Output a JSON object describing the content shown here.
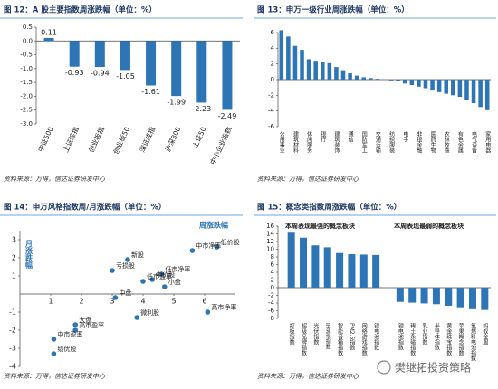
{
  "watermark": "樊继拓投资策略",
  "chart_data": [
    {
      "type": "bar",
      "title": "图 12：A 股主要指数周涨跌幅（单位：%）",
      "source": "资料来源：万得，信达证券研发中心",
      "categories": [
        "中证500",
        "上证综指",
        "创业板指",
        "创业板50",
        "深证成指",
        "沪深300",
        "上证50",
        "中小企业指数"
      ],
      "values": [
        0.11,
        -0.93,
        -0.94,
        -1.05,
        -1.61,
        -1.99,
        -2.23,
        -2.49
      ],
      "color": "#2e75b6",
      "show_values": true,
      "ylim": [
        -3,
        0.5
      ],
      "yticks": [
        0.5,
        {
          "value": 0,
          "label": "0.0"
        },
        -0.5,
        {
          "value": -1,
          "label": "-1.0"
        },
        -1.5,
        {
          "value": -2,
          "label": "-2.0"
        },
        -2.5,
        {
          "value": -3,
          "label": "-3.0"
        }
      ]
    },
    {
      "type": "bar",
      "title": "图 13：申万一级行业周涨跌幅（单位：%）",
      "source": "资料来源：万得，信达证券研发中心",
      "categories": [
        "公用事业",
        null,
        "建筑材料",
        null,
        "休闲服务",
        null,
        "银行",
        null,
        "建筑装饰",
        null,
        "通信",
        null,
        "国防军工",
        null,
        "交通运输",
        null,
        "纺织服装",
        null,
        "电子",
        null,
        "非银金融",
        null,
        "医药生物",
        null,
        "农林牧渔",
        null,
        "有色金属",
        null,
        "电气设备",
        null,
        "家用电器"
      ],
      "values": [
        6.3,
        5.5,
        4.3,
        3.8,
        2.6,
        2.4,
        2.2,
        2.1,
        1.6,
        1.2,
        0.8,
        0.5,
        0.3,
        0.2,
        0.1,
        0.0,
        -0.1,
        -0.2,
        -0.5,
        -0.7,
        -0.9,
        -1.1,
        -1.4,
        -1.6,
        -1.8,
        -2.0,
        -2.2,
        -2.6,
        -3.0,
        -3.5,
        -3.9
      ],
      "color": "#2e75b6",
      "ylim": [
        -6,
        6
      ],
      "yticks": [
        6,
        4,
        2,
        0,
        -2,
        -4,
        -6
      ]
    },
    {
      "type": "scatter",
      "title": "图 14：申万风格指数周/月涨跌幅（单位：%）",
      "source": "资料来源：万得，信达证券研发中心",
      "xlabel": "周涨跌幅",
      "ylabel": "月涨跌幅",
      "labels": [
        "低价股",
        "中市净率",
        "亏损股",
        "新股",
        "低市净率",
        "中价股",
        "低市盈率",
        "小盘",
        "中盘",
        "高市净率",
        "微利股",
        "大盘",
        "高市盈率",
        "中市盈率",
        "绩优股"
      ],
      "x": [
        6.4,
        5.6,
        3.0,
        3.5,
        4.6,
        4.3,
        4.0,
        4.7,
        3.1,
        6.1,
        3.8,
        1.8,
        1.8,
        1.1,
        1.1
      ],
      "y": [
        2.6,
        2.4,
        1.3,
        1.9,
        1.1,
        0.8,
        0.7,
        0.4,
        -0.2,
        -1.0,
        -1.3,
        -1.7,
        -2.0,
        -2.5,
        -3.3
      ],
      "color": "#2e75b6",
      "xlim": [
        0,
        7
      ],
      "ylim": [
        -4,
        3.5
      ],
      "xticks": [
        1,
        2,
        3,
        4,
        5,
        6
      ],
      "yticks": [
        3,
        2,
        1,
        -1,
        -2,
        -3,
        -4
      ]
    },
    {
      "type": "bar",
      "title": "图 15：概念类指数周涨跌幅（单位：%）",
      "source": "资料来源：万得，信达证券研发中心",
      "groups": [
        {
          "name": "本周表现最强的概念板块",
          "categories": [
            "打板指数",
            "超级品牌指数",
            "光伏指数",
            "IP变现指数",
            "智能音箱指数",
            "PM2.5指数",
            "网络游戏指数",
            "锂电池指数"
          ],
          "values": [
            14.3,
            13.0,
            11.0,
            10.5,
            9.0,
            8.7,
            8.6,
            8.5
          ]
        },
        {
          "name": "本周表现最弱的概念板块",
          "categories": [
            "锂电池指数",
            "稀土永磁指数",
            "乳业指数",
            "半导体指数",
            "黄金珠宝指数",
            "苹果概念指数",
            "氢燃料电池指数",
            "蚂蚁金服"
          ],
          "values": [
            -3.7,
            -3.9,
            -4.1,
            -4.3,
            -4.7,
            -5.1,
            -5.6,
            -5.8
          ]
        }
      ],
      "color": "#2e75b6",
      "ylim": [
        -8,
        16
      ],
      "yticks": [
        16,
        14,
        12,
        10,
        8,
        6,
        4,
        2,
        0,
        -2,
        -4,
        -6,
        -8
      ]
    }
  ]
}
